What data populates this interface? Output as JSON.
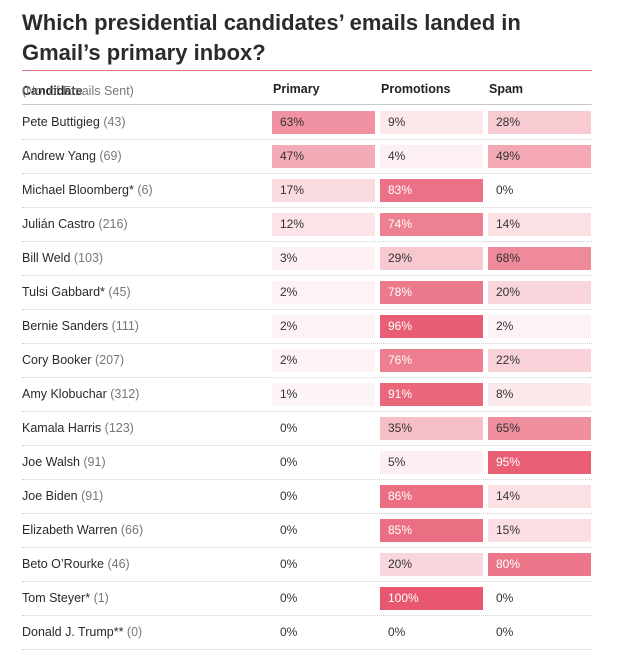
{
  "title": "Which presidential candidates’ emails landed in Gmail’s primary inbox?",
  "table": {
    "header": {
      "candidate": "Candidate",
      "candidate_sub": "(No. of Emails Sent)",
      "primary": "Primary",
      "promotions": "Promotions",
      "spam": "Spam"
    }
  },
  "colors": {
    "accent": "#e5455f",
    "rule": "#e7707f"
  },
  "chart_data": {
    "type": "table",
    "title": "Which presidential candidates’ emails landed in Gmail’s primary inbox?",
    "columns": [
      "Primary",
      "Promotions",
      "Spam"
    ],
    "rows": [
      {
        "name": "Pete Buttigieg",
        "count": "(43)",
        "primary": 63,
        "promotions": 9,
        "spam": 28
      },
      {
        "name": "Andrew Yang",
        "count": "(69)",
        "primary": 47,
        "promotions": 4,
        "spam": 49
      },
      {
        "name": "Michael Bloomberg*",
        "count": "(6)",
        "primary": 17,
        "promotions": 83,
        "spam": 0
      },
      {
        "name": "Julián Castro",
        "count": "(216)",
        "primary": 12,
        "promotions": 74,
        "spam": 14
      },
      {
        "name": "Bill Weld",
        "count": "(103)",
        "primary": 3,
        "promotions": 29,
        "spam": 68
      },
      {
        "name": "Tulsi Gabbard*",
        "count": "(45)",
        "primary": 2,
        "promotions": 78,
        "spam": 20
      },
      {
        "name": "Bernie Sanders",
        "count": "(111)",
        "primary": 2,
        "promotions": 96,
        "spam": 2
      },
      {
        "name": "Cory Booker",
        "count": "(207)",
        "primary": 2,
        "promotions": 76,
        "spam": 22
      },
      {
        "name": "Amy Klobuchar",
        "count": "(312)",
        "primary": 1,
        "promotions": 91,
        "spam": 8
      },
      {
        "name": "Kamala Harris",
        "count": "(123)",
        "primary": 0,
        "promotions": 35,
        "spam": 65
      },
      {
        "name": "Joe Walsh",
        "count": "(91)",
        "primary": 0,
        "promotions": 5,
        "spam": 95
      },
      {
        "name": "Joe Biden",
        "count": "(91)",
        "primary": 0,
        "promotions": 86,
        "spam": 14
      },
      {
        "name": "Elizabeth Warren",
        "count": "(66)",
        "primary": 0,
        "promotions": 85,
        "spam": 15
      },
      {
        "name": "Beto O’Rourke",
        "count": "(46)",
        "primary": 0,
        "promotions": 20,
        "spam": 80
      },
      {
        "name": "Tom Steyer*",
        "count": "(1)",
        "primary": 0,
        "promotions": 100,
        "spam": 0
      },
      {
        "name": "Donald J. Trump**",
        "count": "(0)",
        "primary": 0,
        "promotions": 0,
        "spam": 0
      }
    ]
  }
}
